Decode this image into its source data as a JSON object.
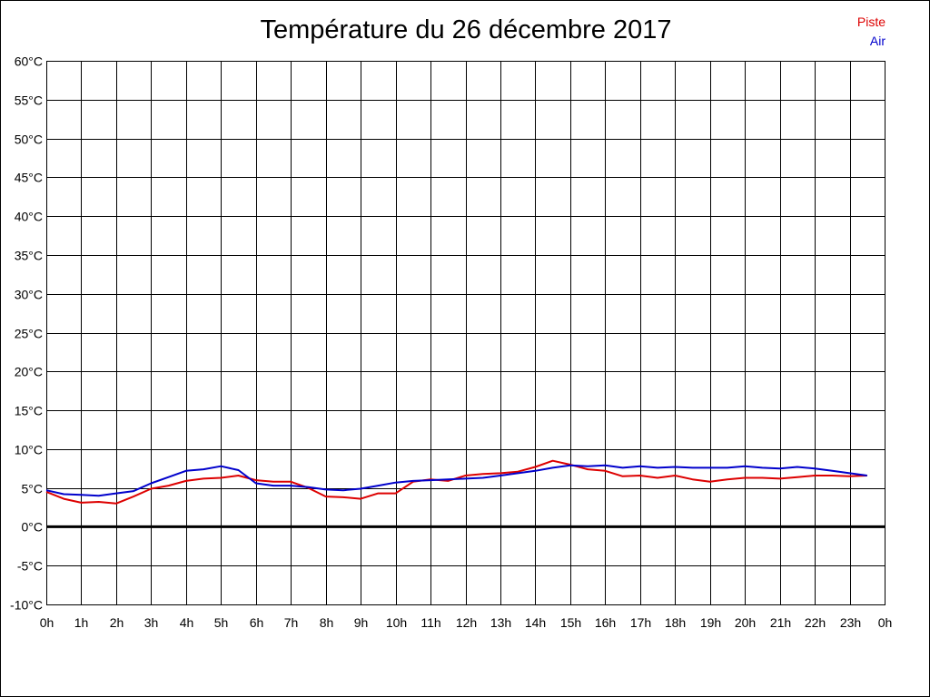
{
  "chart_data": {
    "type": "line",
    "title": "Température du 26 décembre 2017",
    "xlabel": "",
    "ylabel": "",
    "ylim": [
      -10,
      60
    ],
    "yticks": [
      "60°C",
      "55°C",
      "50°C",
      "45°C",
      "40°C",
      "35°C",
      "30°C",
      "25°C",
      "20°C",
      "15°C",
      "10°C",
      "5°C",
      "0°C",
      "-5°C",
      "-10°C"
    ],
    "xticks": [
      "0h",
      "1h",
      "2h",
      "3h",
      "4h",
      "5h",
      "6h",
      "7h",
      "8h",
      "9h",
      "10h",
      "11h",
      "12h",
      "13h",
      "14h",
      "15h",
      "16h",
      "17h",
      "18h",
      "19h",
      "20h",
      "21h",
      "22h",
      "23h",
      "0h"
    ],
    "grid": true,
    "legend_position": "top-right",
    "series": [
      {
        "name": "Piste",
        "color": "#dd0000",
        "x": [
          0,
          0.5,
          1,
          1.5,
          2,
          2.5,
          3,
          3.5,
          4,
          4.5,
          5,
          5.5,
          6,
          6.5,
          7,
          7.5,
          8,
          8.5,
          9,
          9.5,
          10,
          10.5,
          11,
          11.5,
          12,
          12.5,
          13,
          13.5,
          14,
          14.5,
          15,
          15.5,
          16,
          16.5,
          17,
          17.5,
          18,
          18.5,
          19,
          19.5,
          20,
          20.5,
          21,
          21.5,
          22,
          22.5,
          23,
          23.5
        ],
        "values": [
          4.5,
          3.6,
          3.1,
          3.2,
          3.0,
          3.9,
          4.9,
          5.3,
          5.9,
          6.2,
          6.3,
          6.6,
          6.0,
          5.8,
          5.8,
          5.0,
          3.9,
          3.8,
          3.6,
          4.3,
          4.3,
          5.8,
          6.1,
          5.9,
          6.6,
          6.8,
          6.9,
          7.1,
          7.7,
          8.5,
          8.0,
          7.4,
          7.2,
          6.5,
          6.6,
          6.3,
          6.6,
          6.1,
          5.8,
          6.1,
          6.3,
          6.3,
          6.2,
          6.4,
          6.6,
          6.6,
          6.5,
          6.6
        ]
      },
      {
        "name": "Air",
        "color": "#0000cc",
        "x": [
          0,
          0.5,
          1,
          1.5,
          2,
          2.5,
          3,
          3.5,
          4,
          4.5,
          5,
          5.5,
          6,
          6.5,
          7,
          7.5,
          8,
          8.5,
          9,
          9.5,
          10,
          10.5,
          11,
          11.5,
          12,
          12.5,
          13,
          13.5,
          14,
          14.5,
          15,
          15.5,
          16,
          16.5,
          17,
          17.5,
          18,
          18.5,
          19,
          19.5,
          20,
          20.5,
          21,
          21.5,
          22,
          22.5,
          23,
          23.5
        ],
        "values": [
          4.7,
          4.2,
          4.1,
          4.0,
          4.3,
          4.6,
          5.6,
          6.4,
          7.2,
          7.4,
          7.8,
          7.3,
          5.6,
          5.3,
          5.3,
          5.1,
          4.8,
          4.7,
          4.9,
          5.3,
          5.7,
          5.9,
          6.0,
          6.1,
          6.2,
          6.3,
          6.6,
          6.9,
          7.2,
          7.6,
          7.9,
          7.8,
          7.9,
          7.6,
          7.8,
          7.6,
          7.7,
          7.6,
          7.6,
          7.6,
          7.8,
          7.6,
          7.5,
          7.7,
          7.5,
          7.2,
          6.9,
          6.6
        ]
      }
    ]
  }
}
